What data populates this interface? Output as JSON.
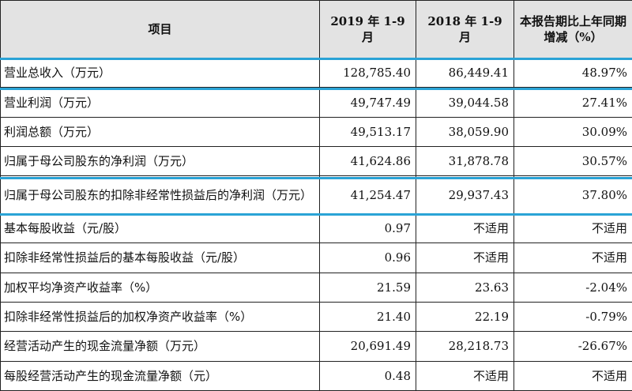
{
  "header": {
    "item": "项目",
    "col_2019": "2019 年 1-9 月",
    "col_2018": "2018 年 1-9 月",
    "col_change": "本报告期比上年同期增减（%）"
  },
  "rows": [
    {
      "label": "营业总收入（万元）",
      "v2019": "128,785.40",
      "v2018": "86,449.41",
      "change": "48.97%"
    },
    {
      "label": "营业利润（万元）",
      "v2019": "49,747.49",
      "v2018": "39,044.58",
      "change": "27.41%"
    },
    {
      "label": "利润总额（万元）",
      "v2019": "49,513.17",
      "v2018": "38,059.90",
      "change": "30.09%"
    },
    {
      "label": "归属于母公司股东的净利润（万元）",
      "v2019": "41,624.86",
      "v2018": "31,878.78",
      "change": "30.57%"
    },
    {
      "label": "归属于母公司股东的扣除非经常性损益后的净利润（万元）",
      "v2019": "41,254.47",
      "v2018": "29,937.43",
      "change": "37.80%"
    },
    {
      "label": "基本每股收益（元/股）",
      "v2019": "0.97",
      "v2018": "不适用",
      "change": "不适用"
    },
    {
      "label": "扣除非经常性损益后的基本每股收益（元/股）",
      "v2019": "0.96",
      "v2018": "不适用",
      "change": "不适用"
    },
    {
      "label": "加权平均净资产收益率（%）",
      "v2019": "21.59",
      "v2018": "23.63",
      "change": "-2.04%"
    },
    {
      "label": "扣除非经常性损益后的加权净资产收益率（%）",
      "v2019": "21.40",
      "v2018": "22.19",
      "change": "-0.79%"
    },
    {
      "label": "经营活动产生的现金流量净额（万元）",
      "v2019": "20,691.49",
      "v2018": "28,218.73",
      "change": "-26.67%"
    },
    {
      "label": "每股经营活动产生的现金流量净额（元）",
      "v2019": "0.48",
      "v2018": "不适用",
      "change": "不适用"
    }
  ],
  "highlight_color": "#2aa3d6"
}
